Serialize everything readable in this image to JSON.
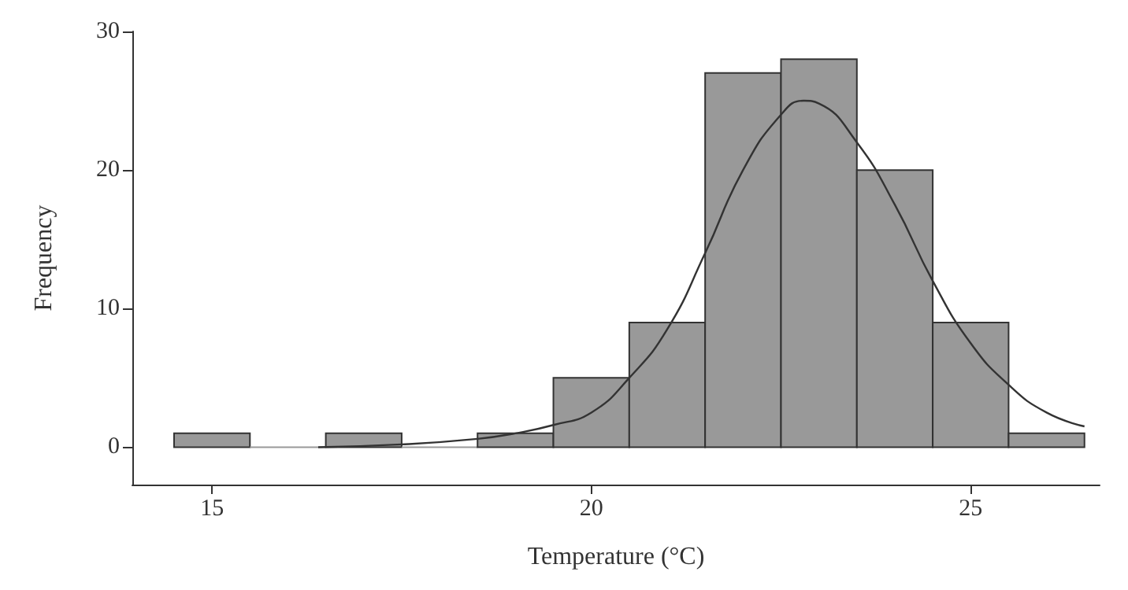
{
  "chart_data": {
    "type": "histogram",
    "xlabel": "Temperature (°C)",
    "ylabel": "Frequency",
    "bins": [
      14.5,
      15.5,
      16.5,
      17.5,
      18.5,
      19.5,
      20.5,
      21.5,
      22.5,
      23.5,
      24.5,
      25.5,
      26.5
    ],
    "values": [
      1,
      0,
      1,
      0,
      1,
      5,
      9,
      27,
      28,
      20,
      9,
      1
    ],
    "color": "#999999",
    "series": [
      {
        "type": "line",
        "color": "#333333",
        "x": [
          16.4,
          17.5,
          18.5,
          19,
          19.5,
          20,
          20.5,
          21,
          21.5,
          22,
          22.5,
          22.8,
          23,
          23.5,
          24,
          24.5,
          25,
          25.5,
          26,
          26.5
        ],
        "values": [
          0,
          0.2,
          0.6,
          1,
          1.6,
          2.5,
          5,
          8.5,
          14,
          20,
          24,
          25,
          24.8,
          22,
          17.5,
          12,
          7.5,
          4.5,
          2.5,
          1.5
        ]
      }
    ],
    "xlim": [
      13.95,
      26.7
    ],
    "xticks": [
      15,
      20,
      25
    ],
    "ylim": [
      -2.7,
      30
    ],
    "yticks": [
      0,
      10,
      20,
      30
    ],
    "grid": false,
    "marker": "none",
    "line_style": "solid"
  }
}
